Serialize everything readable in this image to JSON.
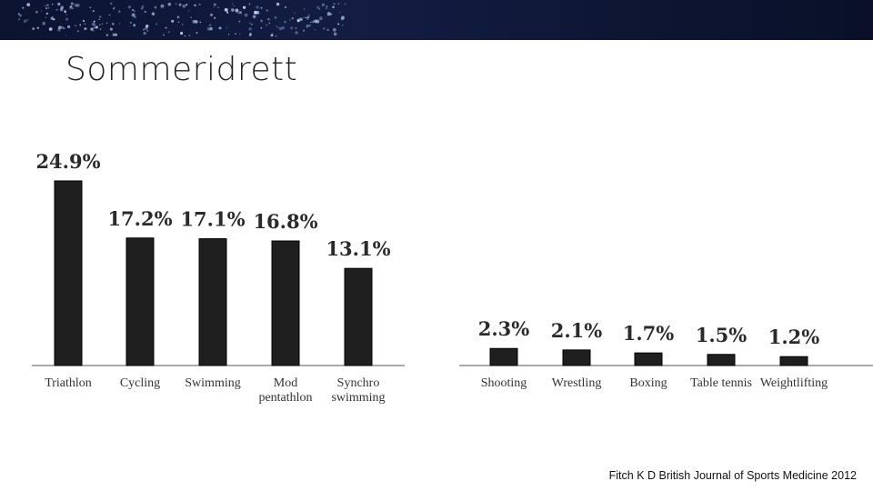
{
  "slide": {
    "title": "Sommeridrett",
    "source": "Fitch K D British Journal of Sports Medicine 2012"
  },
  "colors": {
    "bar": "#1f1f1f",
    "banner": "#0f1838"
  },
  "chart_data": {
    "type": "bar",
    "title": "",
    "xlabel": "",
    "ylabel": "",
    "ylim": [
      0,
      26
    ],
    "grid": false,
    "groups": [
      {
        "categories": [
          [
            "Triathlon"
          ],
          [
            "Cycling"
          ],
          [
            "Swimming"
          ],
          [
            "Mod",
            "pentathlon"
          ],
          [
            "Synchro",
            "swimming"
          ]
        ],
        "values": [
          24.9,
          17.2,
          17.1,
          16.8,
          13.1
        ],
        "labels": [
          "24.9%",
          "17.2%",
          "17.1%",
          "16.8%",
          "13.1%"
        ]
      },
      {
        "categories": [
          [
            "Shooting"
          ],
          [
            "Wrestling"
          ],
          [
            "Boxing"
          ],
          [
            "Table tennis"
          ],
          [
            "Weightlifting"
          ]
        ],
        "values": [
          2.3,
          2.1,
          1.7,
          1.5,
          1.2
        ],
        "labels": [
          "2.3%",
          "2.1%",
          "1.7%",
          "1.5%",
          "1.2%"
        ]
      }
    ]
  }
}
